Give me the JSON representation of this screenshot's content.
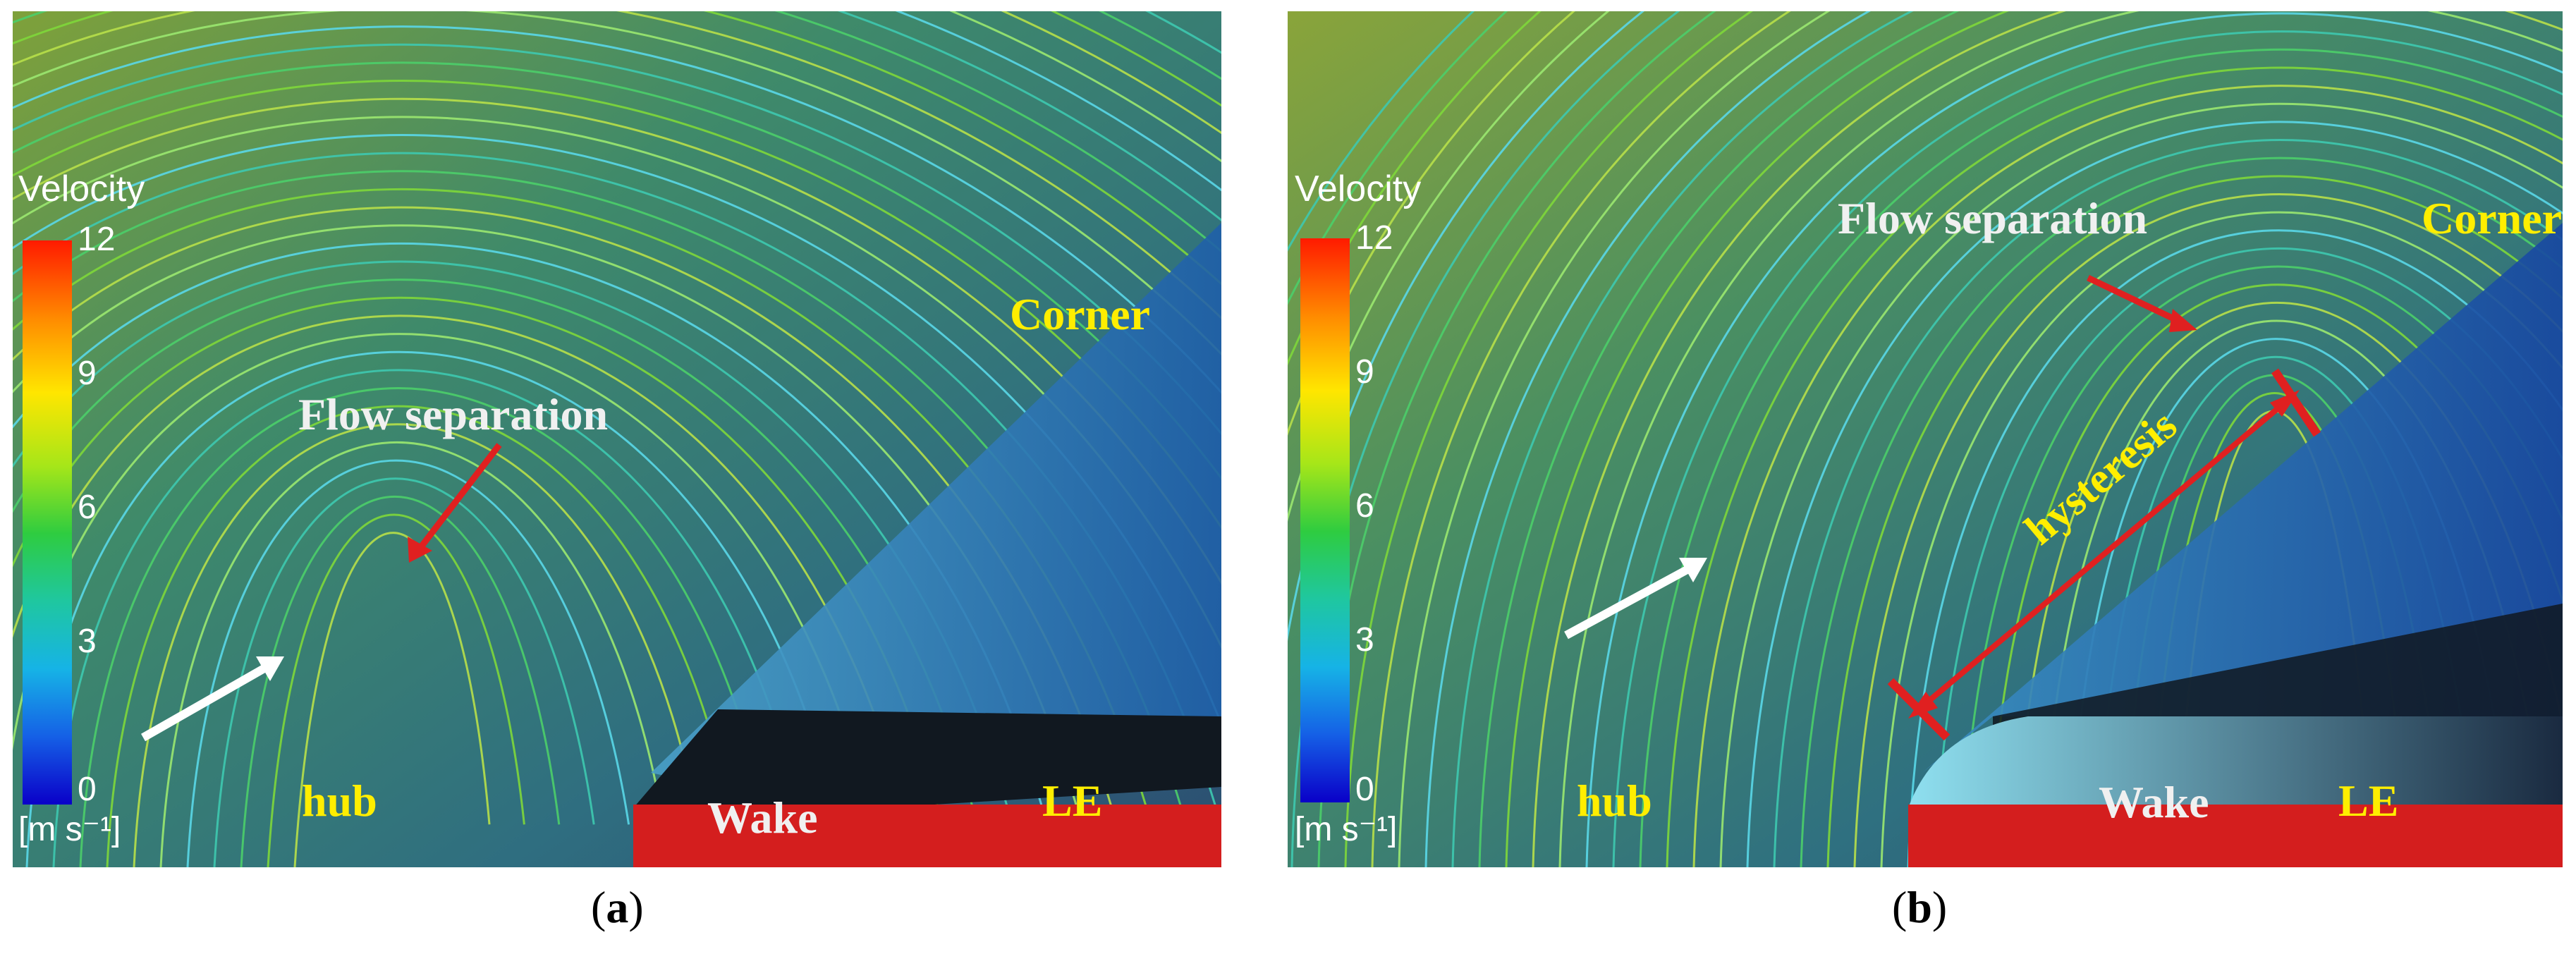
{
  "colorbar": {
    "title": "Velocity",
    "ticks": [
      "12",
      "9",
      "6",
      "3",
      "0"
    ],
    "unit": "[m s⁻¹]",
    "colors": [
      "#ff1a00",
      "#ffe600",
      "#2ecc40",
      "#16b3e6",
      "#0a00c8"
    ]
  },
  "panels": [
    {
      "labels": {
        "corner": "Corner",
        "flow_separation": "Flow separation",
        "hub": "hub",
        "wake": "Wake",
        "le": "LE"
      },
      "caption": {
        "open": "(",
        "letter": "a",
        "close": ")"
      }
    },
    {
      "labels": {
        "corner": "Corner",
        "flow_separation": "Flow separation",
        "hub": "hub",
        "wake": "Wake",
        "le": "LE",
        "hysteresis": "hysteresis"
      },
      "caption": {
        "open": "(",
        "letter": "b",
        "close": ")"
      }
    }
  ]
}
